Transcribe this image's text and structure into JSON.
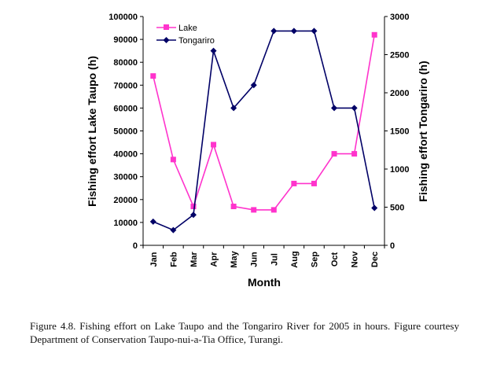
{
  "chart_data": {
    "type": "line",
    "categories": [
      "Jan",
      "Feb",
      "Mar",
      "Apr",
      "May",
      "Jun",
      "Jul",
      "Aug",
      "Sep",
      "Oct",
      "Nov",
      "Dec"
    ],
    "xlabel": "Month",
    "ylabel_left": "Fishing effort Lake Taupo (h)",
    "ylabel_right": "Fishing effort Tongariro (h)",
    "ylim_left": [
      0,
      100000
    ],
    "ylim_right": [
      0,
      3000
    ],
    "yticks_left": [
      "0",
      "10000",
      "20000",
      "30000",
      "40000",
      "50000",
      "60000",
      "70000",
      "80000",
      "90000",
      "100000"
    ],
    "yticks_right": [
      "0",
      "500",
      "1000",
      "1500",
      "2000",
      "2500",
      "3000"
    ],
    "series": [
      {
        "name": "Lake",
        "axis": "left",
        "color": "#ff33cc",
        "marker": "square",
        "values": [
          74000,
          37500,
          17000,
          44000,
          17000,
          15500,
          15500,
          27000,
          27000,
          40000,
          40000,
          92000
        ]
      },
      {
        "name": "Tongariro",
        "axis": "right",
        "color": "#000066",
        "marker": "diamond",
        "values": [
          310,
          200,
          400,
          2550,
          1800,
          2100,
          2810,
          2810,
          2810,
          1800,
          1800,
          490
        ]
      }
    ]
  },
  "caption": "Figure 4.8. Fishing effort on Lake Taupo and the Tongariro River for 2005 in hours. Figure courtesy Department of Conservation Taupo-nui-a-Tia Office, Turangi."
}
